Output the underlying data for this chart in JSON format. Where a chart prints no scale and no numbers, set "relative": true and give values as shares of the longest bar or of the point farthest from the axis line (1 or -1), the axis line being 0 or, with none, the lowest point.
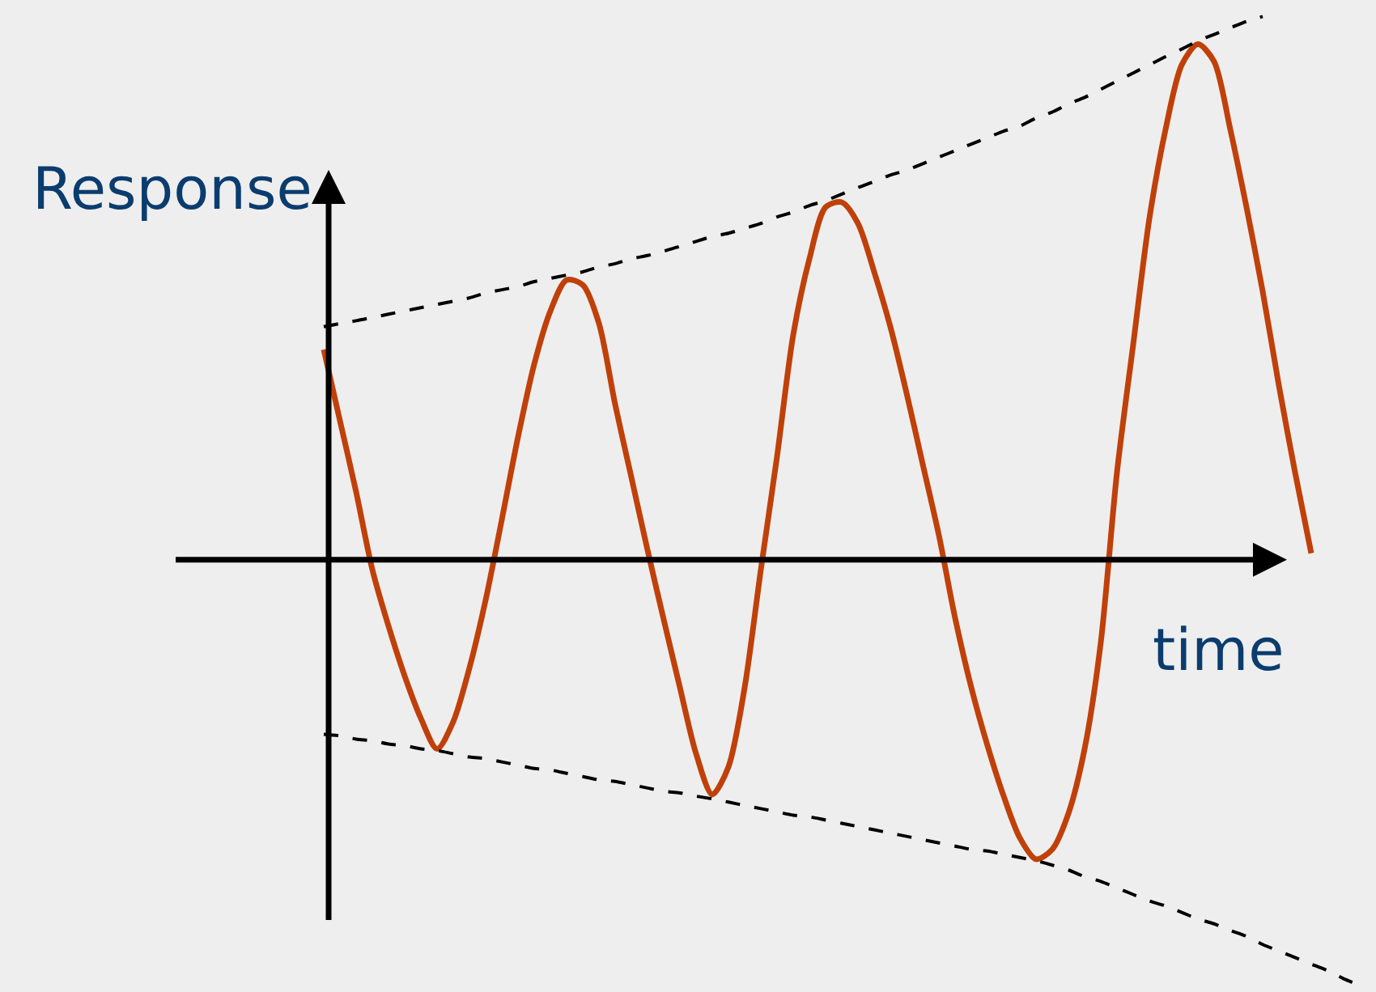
{
  "chart_data": {
    "type": "line",
    "relative": true,
    "xlabel": "time",
    "ylabel": "Response",
    "marker": "none",
    "categories": [
      null,
      null,
      null,
      null,
      null,
      null,
      null,
      null,
      null,
      null,
      null,
      null,
      null,
      null,
      null,
      null,
      null,
      null,
      null,
      null,
      null,
      null,
      null,
      null,
      null,
      null,
      null,
      null,
      null,
      null,
      null,
      null,
      null,
      null,
      null,
      null,
      null,
      null,
      null,
      null,
      null,
      null,
      null,
      null,
      null,
      null,
      null,
      null,
      null,
      null,
      null,
      null,
      null,
      null,
      null,
      null,
      null,
      null,
      null,
      null,
      null,
      null,
      null,
      null,
      null
    ],
    "series": [
      {
        "color": "#c0400a",
        "line_style": "solid",
        "values": [
          0.387,
          0.256,
          0.125,
          -0.018,
          -0.122,
          -0.214,
          -0.292,
          -0.348,
          -0.298,
          -0.199,
          -0.074,
          0.074,
          0.226,
          0.36,
          0.458,
          0.515,
          0.506,
          0.435,
          0.286,
          0.152,
          0.018,
          -0.11,
          -0.235,
          -0.357,
          -0.432,
          -0.381,
          -0.235,
          -0.018,
          0.19,
          0.414,
          0.554,
          0.649,
          0.658,
          0.619,
          0.53,
          0.429,
          0.307,
          0.176,
          0.045,
          -0.107,
          -0.235,
          -0.342,
          -0.435,
          -0.512,
          -0.551,
          -0.533,
          -0.467,
          -0.348,
          -0.152,
          0.161,
          0.396,
          0.628,
          0.792,
          0.911,
          0.949,
          0.917,
          0.792,
          0.649,
          0.494,
          0.321,
          0.161,
          0.012,
          null,
          null,
          null
        ]
      },
      {
        "color": "#000000",
        "line_style": "dashed",
        "values": [
          0.429,
          0.435,
          0.44,
          0.446,
          0.452,
          0.458,
          0.464,
          0.47,
          0.476,
          0.482,
          0.491,
          0.497,
          0.503,
          0.512,
          0.518,
          0.524,
          0.53,
          0.539,
          0.545,
          0.554,
          0.56,
          0.568,
          0.577,
          0.586,
          0.595,
          0.601,
          0.61,
          0.619,
          0.631,
          0.64,
          0.652,
          0.661,
          0.673,
          0.685,
          0.696,
          0.708,
          0.717,
          0.729,
          0.741,
          0.753,
          0.765,
          0.777,
          0.789,
          0.798,
          0.813,
          0.824,
          0.839,
          0.851,
          0.866,
          0.881,
          0.896,
          0.911,
          0.926,
          0.94,
          0.955,
          0.967,
          0.979,
          0.991,
          1.0,
          null,
          null,
          null,
          null,
          null,
          null
        ]
      },
      {
        "color": "#000000",
        "line_style": "dashed",
        "values": [
          -0.321,
          -0.324,
          -0.33,
          -0.333,
          -0.339,
          -0.342,
          -0.348,
          -0.351,
          -0.357,
          -0.363,
          -0.366,
          -0.372,
          -0.378,
          -0.384,
          -0.387,
          -0.393,
          -0.399,
          -0.405,
          -0.408,
          -0.414,
          -0.42,
          -0.426,
          -0.429,
          -0.435,
          -0.44,
          -0.446,
          -0.452,
          -0.458,
          -0.464,
          -0.47,
          -0.473,
          -0.479,
          -0.485,
          -0.491,
          -0.497,
          -0.503,
          -0.509,
          -0.515,
          -0.521,
          -0.527,
          -0.533,
          -0.536,
          -0.542,
          -0.548,
          -0.554,
          -0.562,
          -0.571,
          -0.583,
          -0.592,
          -0.604,
          -0.616,
          -0.628,
          -0.637,
          -0.649,
          -0.661,
          -0.67,
          -0.682,
          -0.693,
          -0.708,
          -0.72,
          -0.732,
          -0.744,
          -0.756,
          -0.771,
          -0.783
        ]
      }
    ]
  }
}
